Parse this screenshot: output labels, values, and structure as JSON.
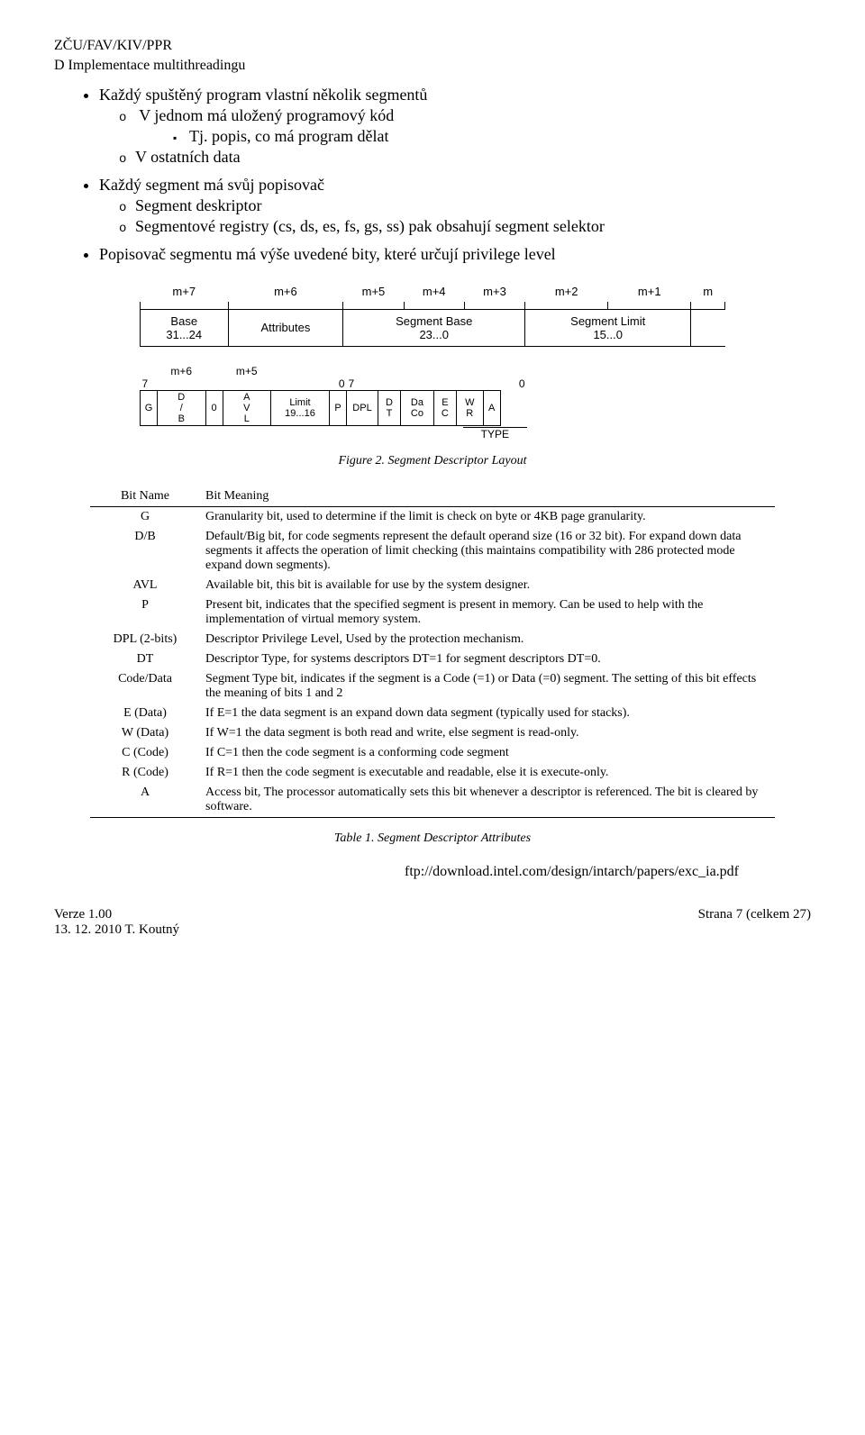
{
  "header": {
    "line1": "ZČU/FAV/KIV/PPR",
    "line2": "D Implementace multithreadingu"
  },
  "bullets": {
    "b1": "Každý spuštěný program vlastní několik segmentů",
    "b1s1": "V jednom má uložený programový kód",
    "b1s1a": "Tj. popis, co má program dělat",
    "b1s2": "V ostatních data",
    "b2": "Každý segment má svůj popisovač",
    "b2s1": "Segment deskriptor",
    "b2s2": "Segmentové registry (cs, ds, es, fs, gs, ss) pak obsahují segment selektor",
    "b3": "Popisovač segmentu má výše uvedené bity, které určují privilege level"
  },
  "fig1": {
    "bytes": [
      "m+7",
      "m+6",
      "m+5",
      "m+4",
      "m+3",
      "m+2",
      "m+1",
      "m"
    ],
    "cells": [
      {
        "label": "Base\n31...24",
        "span": 1
      },
      {
        "label": "Attributes",
        "span": 1
      },
      {
        "label": "Segment Base\n23...0",
        "span": 3
      },
      {
        "label": "Segment Limit\n15...0",
        "span": 2
      }
    ],
    "bytes2": [
      "",
      "m+6",
      "",
      "m+5",
      ""
    ],
    "bit_top": [
      "7",
      "",
      "",
      "",
      "",
      "0",
      "7",
      "",
      "",
      "",
      "",
      "",
      "",
      "0"
    ],
    "bits_row": [
      "G",
      "D\n/\nB",
      "0",
      "A\nV\nL",
      "Limit\n19...16",
      "P",
      "DPL",
      "D\nT",
      "Da\nCo",
      "E\nC",
      "W\nR",
      "A"
    ],
    "type_label": "TYPE",
    "caption": "Figure 2.  Segment Descriptor Layout"
  },
  "bittable": {
    "head": [
      "Bit Name",
      "Bit Meaning"
    ],
    "rows": [
      [
        "G",
        "Granularity bit, used to determine if the limit is check on byte or 4KB page granularity."
      ],
      [
        "D/B",
        "Default/Big bit, for code segments represent the default operand size (16 or 32 bit). For expand down data segments it affects the operation of limit checking (this maintains compatibility with 286 protected mode expand down segments)."
      ],
      [
        "AVL",
        "Available bit, this bit is available for use by the system designer."
      ],
      [
        "P",
        "Present bit, indicates that the specified segment is present in memory. Can be used to help with the implementation of virtual memory system."
      ],
      [
        "DPL (2-bits)",
        "Descriptor Privilege Level, Used by the protection mechanism."
      ],
      [
        "DT",
        "Descriptor Type, for systems descriptors DT=1 for segment descriptors DT=0."
      ],
      [
        "Code/Data",
        "Segment Type bit, indicates if the segment is a Code (=1) or Data (=0) segment. The setting of this bit effects the meaning of bits 1 and 2"
      ],
      [
        "E (Data)",
        "If E=1 the data segment is an expand down data segment (typically used for stacks)."
      ],
      [
        "W (Data)",
        "If W=1 the data segment is both read and write, else segment is read-only."
      ],
      [
        "C (Code)",
        "If C=1 then the code segment is a conforming code segment"
      ],
      [
        "R (Code)",
        "If R=1 then the code segment is executable and readable, else it is execute-only."
      ],
      [
        "A",
        "Access bit, The processor automatically sets this bit whenever a descriptor is referenced. The bit is cleared by software."
      ]
    ],
    "caption": "Table 1.  Segment Descriptor Attributes"
  },
  "url": "ftp://download.intel.com/design/intarch/papers/exc_ia.pdf",
  "footer": {
    "l1": "Verze 1.00",
    "l2": "13. 12. 2010 T. Koutný",
    "r": "Strana 7 (celkem 27)"
  }
}
